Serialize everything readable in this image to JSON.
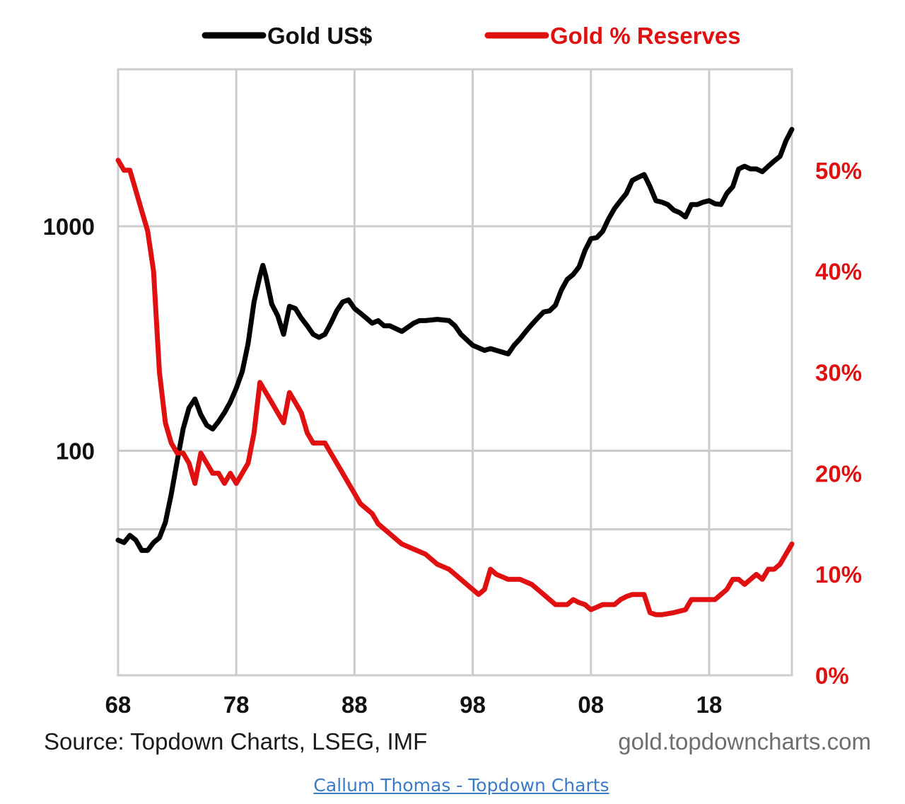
{
  "chart_data": {
    "type": "line",
    "title": "",
    "xlabel": "",
    "legend": {
      "placement": "top"
    },
    "grid": true,
    "x_ticks": [
      "68",
      "78",
      "88",
      "98",
      "08",
      "18"
    ],
    "xlim": [
      1968,
      2025
    ],
    "left_axis": {
      "scale": "log",
      "ylim": [
        10,
        5000
      ],
      "tick_values": [
        100,
        1000
      ],
      "tick_labels": [
        "100",
        "1000"
      ]
    },
    "right_axis": {
      "ylim": [
        0,
        60
      ],
      "tick_values": [
        0,
        10,
        20,
        30,
        40,
        50
      ],
      "tick_labels": [
        "0%",
        "10%",
        "20%",
        "30%",
        "40%",
        "50%"
      ]
    },
    "series": [
      {
        "name": "Gold US$",
        "axis": "left",
        "color": "#000000",
        "x": [
          1968,
          1968.5,
          1969,
          1969.5,
          1970,
          1970.5,
          1971,
          1971.5,
          1972,
          1972.5,
          1973,
          1973.5,
          1974,
          1974.5,
          1975,
          1975.5,
          1976,
          1976.5,
          1977,
          1977.5,
          1978,
          1978.5,
          1979,
          1979.5,
          1980,
          1980.25,
          1980.5,
          1981,
          1981.5,
          1982,
          1982.5,
          1983,
          1983.5,
          1984,
          1984.5,
          1985,
          1985.5,
          1986,
          1986.5,
          1987,
          1987.5,
          1988,
          1988.5,
          1989,
          1989.5,
          1990,
          1990.5,
          1991,
          1992,
          1993,
          1993.5,
          1994,
          1995,
          1996,
          1996.5,
          1997,
          1998,
          1999,
          1999.5,
          2000,
          2000.5,
          2001,
          2001.5,
          2002,
          2002.5,
          2003,
          2003.5,
          2004,
          2004.5,
          2005,
          2005.5,
          2006,
          2006.5,
          2007,
          2007.5,
          2008,
          2008.5,
          2009,
          2009.5,
          2010,
          2010.5,
          2011,
          2011.5,
          2012,
          2012.5,
          2013,
          2013.5,
          2014,
          2014.5,
          2015,
          2015.5,
          2016,
          2016.5,
          2017,
          2017.5,
          2018,
          2018.5,
          2019,
          2019.5,
          2020,
          2020.5,
          2021,
          2021.5,
          2022,
          2022.5,
          2023,
          2023.5,
          2024,
          2024.5,
          2025
        ],
        "values": [
          40,
          39,
          42,
          40,
          36,
          36,
          39,
          41,
          48,
          64,
          90,
          125,
          155,
          170,
          145,
          130,
          125,
          135,
          148,
          165,
          190,
          225,
          300,
          460,
          600,
          670,
          600,
          450,
          400,
          330,
          440,
          430,
          390,
          360,
          330,
          320,
          330,
          370,
          420,
          460,
          470,
          430,
          410,
          390,
          370,
          380,
          360,
          360,
          340,
          370,
          380,
          380,
          385,
          380,
          360,
          330,
          295,
          280,
          285,
          280,
          275,
          270,
          295,
          315,
          340,
          365,
          390,
          415,
          420,
          445,
          520,
          580,
          610,
          660,
          780,
          880,
          890,
          950,
          1080,
          1200,
          1300,
          1400,
          1600,
          1650,
          1700,
          1500,
          1300,
          1280,
          1250,
          1180,
          1150,
          1100,
          1250,
          1250,
          1280,
          1300,
          1260,
          1250,
          1400,
          1500,
          1800,
          1850,
          1800,
          1800,
          1750,
          1850,
          1950,
          2050,
          2400,
          2700
        ]
      },
      {
        "name": "Gold % Reserves",
        "axis": "right",
        "color": "#e01010",
        "x": [
          1968,
          1968.5,
          1969,
          1969.5,
          1970,
          1970.5,
          1971,
          1971.5,
          1972,
          1972.5,
          1973,
          1973.5,
          1974,
          1974.5,
          1975,
          1975.5,
          1976,
          1976.5,
          1977,
          1977.5,
          1978,
          1978.5,
          1979,
          1979.5,
          1980,
          1980.5,
          1981,
          1981.5,
          1982,
          1982.5,
          1983,
          1983.5,
          1984,
          1984.5,
          1985,
          1985.5,
          1986,
          1986.5,
          1987,
          1987.5,
          1988,
          1988.5,
          1989,
          1989.5,
          1990,
          1990.5,
          1991,
          1992,
          1993,
          1994,
          1995,
          1996,
          1997,
          1997.5,
          1998,
          1998.5,
          1999,
          1999.5,
          2000,
          2001,
          2002,
          2003,
          2004,
          2005,
          2006,
          2006.5,
          2007,
          2007.5,
          2008,
          2009,
          2010,
          2010.5,
          2011,
          2011.5,
          2012,
          2012.5,
          2013,
          2013.5,
          2014,
          2015,
          2016,
          2016.5,
          2017,
          2018,
          2018.5,
          2019,
          2019.5,
          2020,
          2020.5,
          2021,
          2022,
          2022.5,
          2023,
          2023.5,
          2024,
          2024.5,
          2025
        ],
        "values": [
          51,
          50,
          50,
          48,
          46,
          44,
          40,
          30,
          25,
          23,
          22,
          22,
          21,
          19,
          22,
          21,
          20,
          20,
          19,
          20,
          19,
          20,
          21,
          24,
          29,
          28,
          27,
          26,
          25,
          28,
          27,
          26,
          24,
          23,
          23,
          23,
          22,
          21,
          20,
          19,
          18,
          17,
          16.5,
          16,
          15,
          14.5,
          14,
          13,
          12.5,
          12,
          11,
          10.5,
          9.5,
          9,
          8.5,
          8,
          8.5,
          10.5,
          10,
          9.5,
          9.5,
          9,
          8,
          7,
          7,
          7.5,
          7.2,
          7,
          6.5,
          7,
          7,
          7.5,
          7.8,
          8,
          8,
          8,
          6.2,
          6,
          6,
          6.2,
          6.5,
          7.5,
          7.5,
          7.5,
          7.5,
          8,
          8.5,
          9.5,
          9.5,
          9,
          10,
          9.5,
          10.5,
          10.5,
          11,
          12,
          13
        ]
      }
    ],
    "source": "Source: Topdown Charts, LSEG, IMF",
    "website": "gold.topdowncharts.com"
  },
  "credit": {
    "text": "Callum Thomas - Topdown Charts"
  }
}
